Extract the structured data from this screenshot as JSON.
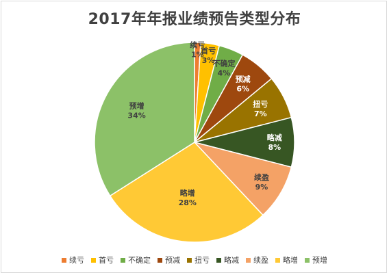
{
  "chart_data": {
    "type": "pie",
    "title": "2017年年报业绩预告类型分布",
    "legend_position": "bottom",
    "categories": [
      "续亏",
      "首亏",
      "不确定",
      "预减",
      "扭亏",
      "略减",
      "续盈",
      "略增",
      "预增"
    ],
    "values": [
      1,
      3,
      4,
      6,
      7,
      8,
      9,
      28,
      34
    ],
    "labels": [
      "1%",
      "3%",
      "4%",
      "6%",
      "7%",
      "8%",
      "9%",
      "28%",
      "34%"
    ],
    "colors": [
      "#ED7D31",
      "#FFC000",
      "#70AD47",
      "#9E480E",
      "#997300",
      "#375623",
      "#F4A266",
      "#FFC935",
      "#8CC168"
    ]
  }
}
